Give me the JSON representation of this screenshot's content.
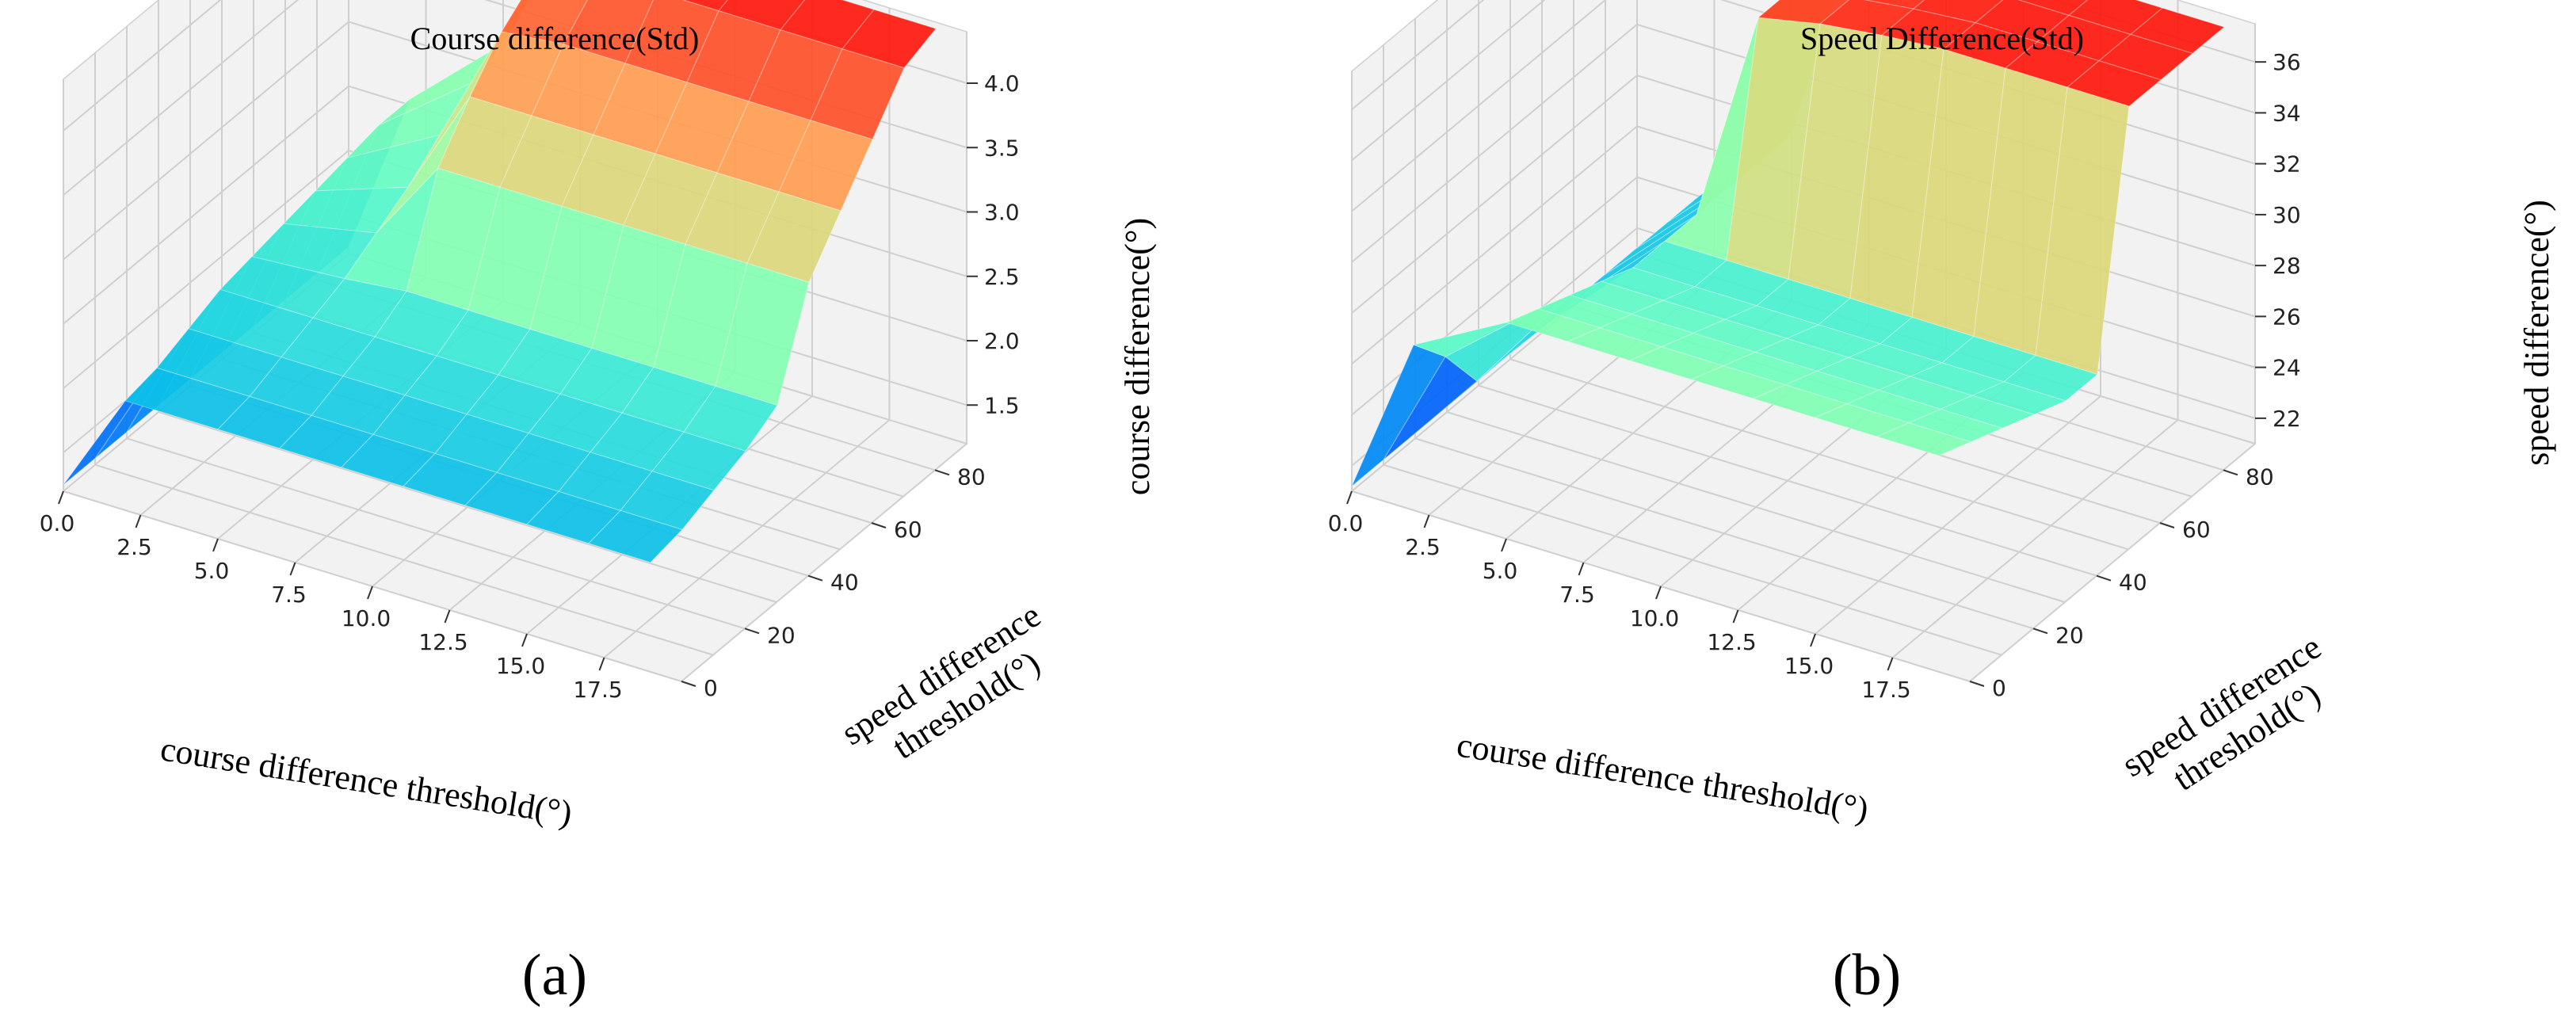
{
  "figure": {
    "panels": [
      {
        "label": "(a)",
        "title": "Course difference(Std)"
      },
      {
        "label": "(b)",
        "title": "Speed Difference(Std)"
      }
    ]
  },
  "chart_data": [
    {
      "type": "surface3d",
      "title": "Course difference(Std)",
      "xlabel": "course difference threshold(°)",
      "ylabel": "speed difference threshold(°)",
      "zlabel": "course difference(°)",
      "xlim": [
        0,
        20
      ],
      "ylim": [
        0,
        90
      ],
      "zlim": [
        1.2,
        4.4
      ],
      "xticks": [
        "0.0",
        "2.5",
        "5.0",
        "7.5",
        "10.0",
        "12.5",
        "15.0",
        "17.5"
      ],
      "yticks": [
        "0",
        "20",
        "40",
        "60",
        "80"
      ],
      "zticks": [
        "1.5",
        "2.0",
        "2.5",
        "3.0",
        "3.5",
        "4.0"
      ],
      "colormap": "rainbow",
      "x": [
        0,
        2,
        5,
        7,
        9,
        11,
        13,
        15,
        17,
        19
      ],
      "y": [
        0,
        10,
        20,
        30,
        40,
        50,
        60,
        70,
        80,
        90
      ],
      "z": [
        [
          1.25,
          2.05,
          2.05,
          2.05,
          2.05,
          2.05,
          2.05,
          2.05,
          2.05,
          2.05
        ],
        [
          1.25,
          2.1,
          2.1,
          2.1,
          2.1,
          2.1,
          2.1,
          2.1,
          2.1,
          2.1
        ],
        [
          1.25,
          2.2,
          2.2,
          2.2,
          2.2,
          2.2,
          2.2,
          2.2,
          2.2,
          2.2
        ],
        [
          1.25,
          2.3,
          2.3,
          2.3,
          2.3,
          2.3,
          2.3,
          2.3,
          2.3,
          2.3
        ],
        [
          1.25,
          2.35,
          2.4,
          2.45,
          2.45,
          2.45,
          2.45,
          2.45,
          2.45,
          2.45
        ],
        [
          1.25,
          2.4,
          2.55,
          3.2,
          3.2,
          3.2,
          3.2,
          3.2,
          3.2,
          3.2
        ],
        [
          1.25,
          2.45,
          2.7,
          3.55,
          3.55,
          3.55,
          3.55,
          3.55,
          3.55,
          3.55
        ],
        [
          1.25,
          2.5,
          2.9,
          3.85,
          3.9,
          3.9,
          3.9,
          3.9,
          3.9,
          3.9
        ],
        [
          1.25,
          2.55,
          3.1,
          4.05,
          4.15,
          4.25,
          4.25,
          4.25,
          4.25,
          4.25
        ],
        [
          1.25,
          2.55,
          3.2,
          4.15,
          4.3,
          4.35,
          4.35,
          4.35,
          4.35,
          4.35
        ]
      ]
    },
    {
      "type": "surface3d",
      "title": "Speed Difference(Std)",
      "xlabel": "course difference threshold(°)",
      "ylabel": "speed difference threshold(°)",
      "zlabel": "speed difference(°)",
      "xlim": [
        0,
        20
      ],
      "ylim": [
        0,
        90
      ],
      "zlim": [
        21,
        37.5
      ],
      "xticks": [
        "0.0",
        "2.5",
        "5.0",
        "7.5",
        "10.0",
        "12.5",
        "15.0",
        "17.5"
      ],
      "yticks": [
        "0",
        "20",
        "40",
        "60",
        "80"
      ],
      "zticks": [
        "22",
        "24",
        "26",
        "28",
        "30",
        "32",
        "34",
        "36"
      ],
      "colormap": "rainbow",
      "x": [
        0,
        2,
        5,
        7,
        9,
        11,
        13,
        15,
        17,
        19
      ],
      "y": [
        0,
        10,
        20,
        30,
        40,
        50,
        60,
        70,
        80,
        90
      ],
      "z": [
        [
          21.2,
          27.5,
          29.5,
          29.5,
          29.5,
          29.5,
          29.5,
          29.5,
          29.5,
          29.5
        ],
        [
          21.2,
          26.0,
          29.0,
          29.0,
          29.0,
          29.0,
          29.0,
          29.0,
          29.0,
          29.0
        ],
        [
          21.2,
          24.0,
          28.5,
          28.5,
          28.5,
          28.5,
          28.5,
          28.5,
          28.5,
          28.5
        ],
        [
          21.2,
          24.0,
          28.0,
          28.0,
          28.0,
          28.0,
          28.0,
          28.0,
          28.0,
          28.0
        ],
        [
          21.2,
          24.0,
          27.5,
          27.5,
          27.5,
          27.5,
          27.5,
          27.5,
          27.5,
          27.5
        ],
        [
          21.2,
          24.0,
          27.5,
          27.5,
          27.5,
          27.5,
          27.5,
          27.5,
          27.5,
          27.5
        ],
        [
          21.2,
          24.0,
          27.5,
          36.0,
          36.5,
          36.8,
          37.0,
          37.0,
          37.0,
          37.0
        ],
        [
          21.2,
          24.0,
          27.5,
          36.0,
          36.5,
          36.8,
          37.0,
          37.0,
          37.0,
          37.0
        ],
        [
          21.2,
          24.0,
          27.5,
          36.0,
          36.5,
          36.8,
          37.0,
          37.0,
          37.0,
          37.0
        ],
        [
          21.2,
          24.0,
          27.5,
          36.0,
          36.5,
          36.8,
          37.0,
          37.0,
          37.0,
          37.0
        ]
      ]
    }
  ]
}
